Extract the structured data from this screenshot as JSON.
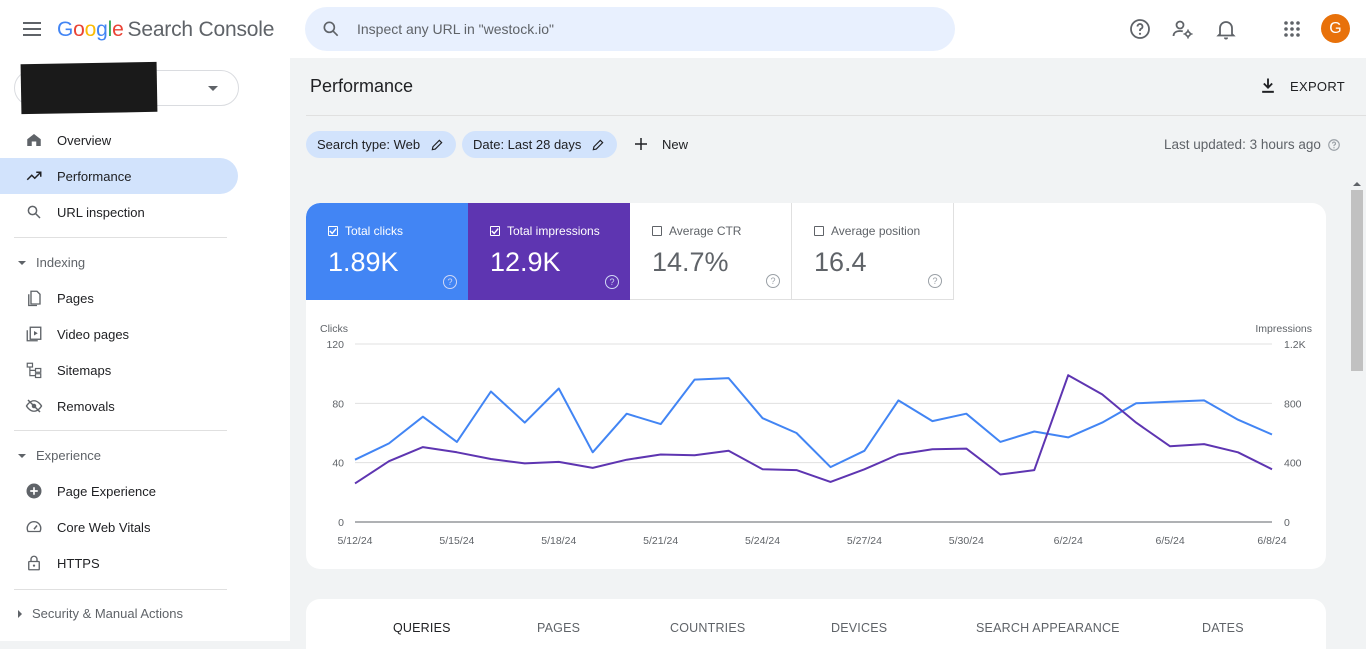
{
  "app": {
    "title_parts": [
      "G",
      "o",
      "o",
      "g",
      "l",
      "e"
    ],
    "product": "Search Console",
    "search_placeholder": "Inspect any URL in \"westock.io\"",
    "avatar_letter": "G",
    "avatar_color": "#e8710a"
  },
  "sidebar": {
    "items": [
      {
        "label": "Overview",
        "icon": "home-icon"
      },
      {
        "label": "Performance",
        "icon": "trending-up-icon",
        "active": true
      },
      {
        "label": "URL inspection",
        "icon": "search-icon"
      }
    ],
    "indexing": {
      "label": "Indexing",
      "items": [
        {
          "label": "Pages",
          "icon": "pages-icon"
        },
        {
          "label": "Video pages",
          "icon": "video-pages-icon"
        },
        {
          "label": "Sitemaps",
          "icon": "sitemap-icon"
        },
        {
          "label": "Removals",
          "icon": "removals-icon"
        }
      ]
    },
    "experience": {
      "label": "Experience",
      "items": [
        {
          "label": "Page Experience",
          "icon": "page-experience-icon"
        },
        {
          "label": "Core Web Vitals",
          "icon": "speed-icon"
        },
        {
          "label": "HTTPS",
          "icon": "lock-icon"
        }
      ]
    },
    "security": {
      "label": "Security & Manual Actions"
    }
  },
  "page": {
    "title": "Performance",
    "export_label": "EXPORT",
    "filters": [
      {
        "label": "Search type: Web"
      },
      {
        "label": "Date: Last 28 days"
      }
    ],
    "new_label": "New",
    "last_updated": "Last updated: 3 hours ago"
  },
  "metrics": [
    {
      "label": "Total clicks",
      "value": "1.89K",
      "checked": true,
      "color": "#4285f4"
    },
    {
      "label": "Total impressions",
      "value": "12.9K",
      "checked": true,
      "color": "#5e35b1"
    },
    {
      "label": "Average CTR",
      "value": "14.7%",
      "checked": false
    },
    {
      "label": "Average position",
      "value": "16.4",
      "checked": false
    }
  ],
  "chart_data": {
    "type": "line",
    "left_axis_title": "Clicks",
    "right_axis_title": "Impressions",
    "left_ticks": [
      "0",
      "40",
      "80",
      "120"
    ],
    "right_ticks": [
      "0",
      "400",
      "800",
      "1.2K"
    ],
    "left_ylim": [
      0,
      120
    ],
    "right_ylim": [
      0,
      1200
    ],
    "grid": true,
    "x_tick_labels": [
      "5/12/24",
      "5/15/24",
      "5/18/24",
      "5/21/24",
      "5/24/24",
      "5/27/24",
      "5/30/24",
      "6/2/24",
      "6/5/24",
      "6/8/24"
    ],
    "x": [
      "5/12/24",
      "5/13/24",
      "5/14/24",
      "5/15/24",
      "5/16/24",
      "5/17/24",
      "5/18/24",
      "5/19/24",
      "5/20/24",
      "5/21/24",
      "5/22/24",
      "5/23/24",
      "5/24/24",
      "5/25/24",
      "5/26/24",
      "5/27/24",
      "5/28/24",
      "5/29/24",
      "5/30/24",
      "5/31/24",
      "6/1/24",
      "6/2/24",
      "6/3/24",
      "6/4/24",
      "6/5/24",
      "6/6/24",
      "6/7/24",
      "6/8/24"
    ],
    "series": [
      {
        "name": "Clicks",
        "axis": "left",
        "color": "#4285f4",
        "values": [
          42,
          53,
          71,
          54,
          88,
          67,
          90,
          47,
          73,
          66,
          96,
          97,
          70,
          60,
          37,
          48,
          82,
          68,
          73,
          54,
          61,
          57,
          67,
          80,
          81,
          82,
          69,
          59
        ]
      },
      {
        "name": "Impressions",
        "axis": "right",
        "color": "#5e35b1",
        "values": [
          260,
          410,
          505,
          470,
          425,
          395,
          405,
          365,
          420,
          455,
          450,
          480,
          355,
          350,
          270,
          355,
          455,
          490,
          495,
          320,
          350,
          990,
          860,
          670,
          510,
          525,
          470,
          355
        ]
      }
    ]
  },
  "tabs": [
    {
      "label": "QUERIES",
      "active": true
    },
    {
      "label": "PAGES"
    },
    {
      "label": "COUNTRIES"
    },
    {
      "label": "DEVICES"
    },
    {
      "label": "SEARCH APPEARANCE"
    },
    {
      "label": "DATES"
    }
  ]
}
